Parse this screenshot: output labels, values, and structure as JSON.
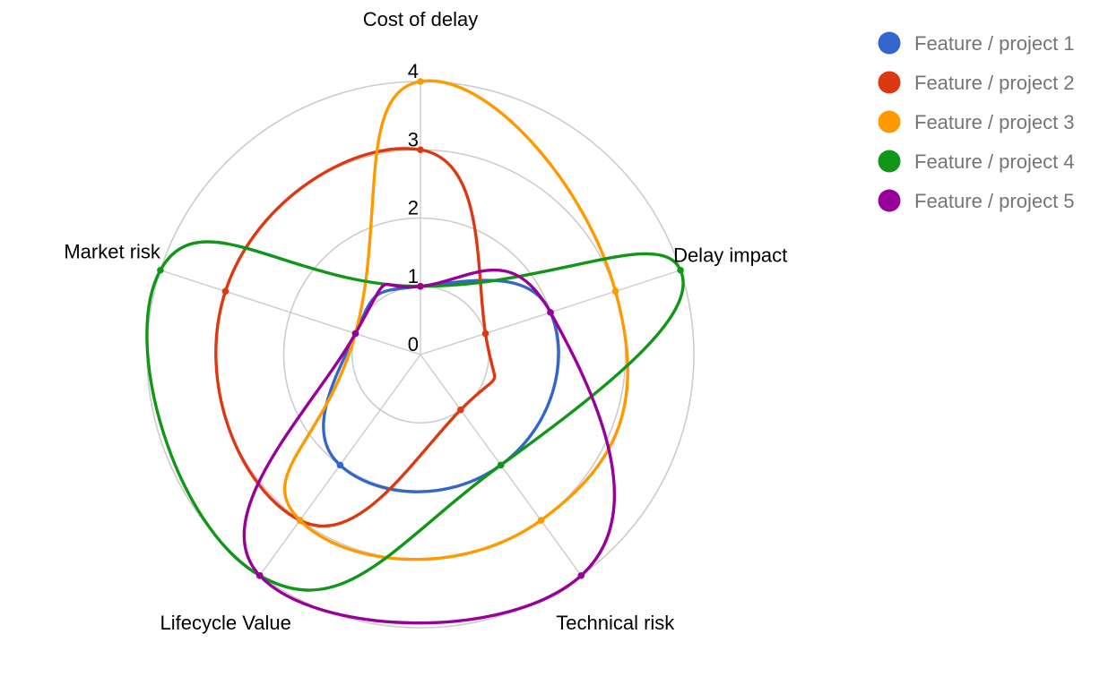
{
  "chart_data": {
    "type": "radar",
    "axes": [
      "Cost of delay",
      "Delay impact",
      "Technical risk",
      "Lifecycle Value",
      "Market risk"
    ],
    "ticks": [
      "0",
      "1",
      "2",
      "3",
      "4"
    ],
    "rlim": [
      0,
      4
    ],
    "grid": true,
    "legend_position": "top-right",
    "series": [
      {
        "name": "Feature / project 1",
        "color": "#3366cc",
        "values": [
          1,
          2,
          2,
          2,
          1
        ]
      },
      {
        "name": "Feature / project 2",
        "color": "#dc3912",
        "values": [
          3,
          1,
          1,
          3,
          3
        ]
      },
      {
        "name": "Feature / project 3",
        "color": "#ff9900",
        "values": [
          4,
          3,
          3,
          3,
          1
        ]
      },
      {
        "name": "Feature / project 4",
        "color": "#109618",
        "values": [
          1,
          4,
          2,
          4,
          4
        ]
      },
      {
        "name": "Feature / project 5",
        "color": "#990099",
        "values": [
          1,
          2,
          4,
          4,
          1
        ]
      }
    ]
  }
}
